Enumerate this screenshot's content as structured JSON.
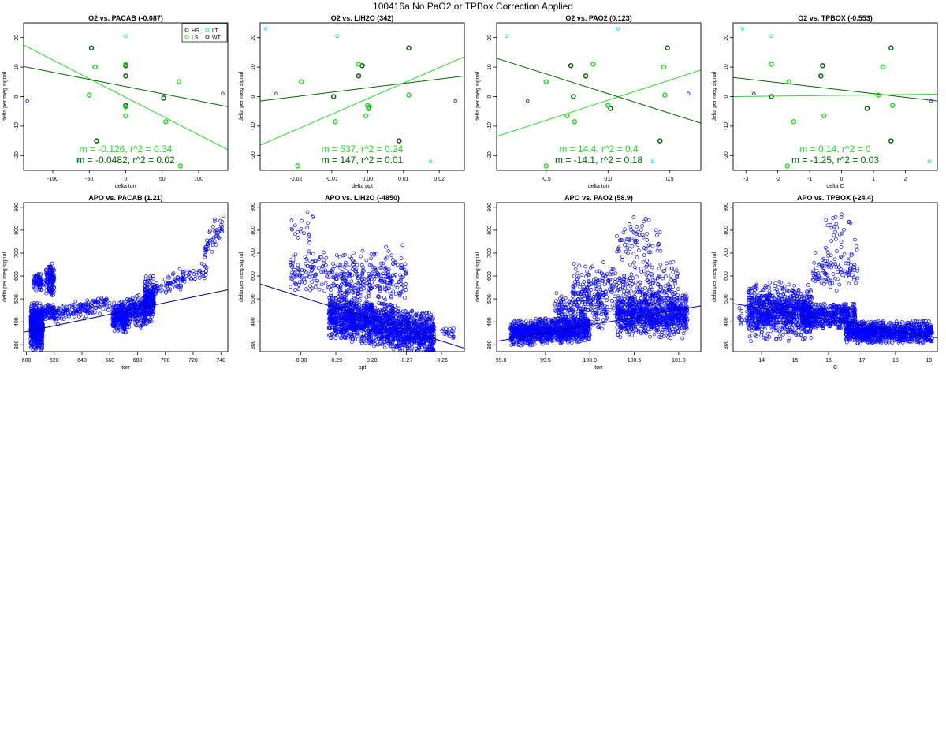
{
  "page_title": "100416a   No PaO2 or TPBox Correction Applied",
  "colors": {
    "HS": "#006400",
    "LS": "#22dd22",
    "LT": "#00e5ee",
    "WT": "#1a1aee",
    "apo_points": "#0000ff",
    "apo_fit": "#00008b"
  },
  "chart_data": [
    {
      "type": "scatter",
      "title": "O2 vs. PACAB (-0.087)",
      "xlabel": "delta torr",
      "ylabel": "delta per meg signal",
      "xlim": [
        -140,
        140
      ],
      "ylim": [
        -25,
        25
      ],
      "xticks": [
        -100,
        -50,
        0,
        50,
        100
      ],
      "yticks": [
        -20,
        -10,
        0,
        10,
        20
      ],
      "legend": {
        "position": "top-right",
        "entries": [
          "HS",
          "LS",
          "LT",
          "WT"
        ]
      },
      "series": [
        {
          "name": "HS",
          "points": [
            [
              -47,
              16.5
            ],
            [
              0,
              10.5
            ],
            [
              0,
              7
            ],
            [
              -40,
              -15
            ],
            [
              0,
              -3
            ],
            [
              52,
              -0.5
            ]
          ]
        },
        {
          "name": "LS",
          "points": [
            [
              -42,
              10
            ],
            [
              -50,
              0.5
            ],
            [
              0,
              11
            ],
            [
              0,
              -3.5
            ],
            [
              0,
              -6.5
            ],
            [
              55,
              -8.5
            ],
            [
              73,
              5
            ],
            [
              75,
              -23.5
            ]
          ]
        },
        {
          "name": "LT",
          "points": [
            [
              0,
              20.5
            ],
            [
              -65,
              -21.5
            ]
          ]
        },
        {
          "name": "WT",
          "points": [
            [
              -135,
              -1.5
            ],
            [
              133,
              1
            ]
          ]
        }
      ],
      "fits": [
        {
          "series": "LS",
          "text": "m = -0.126, r^2 = 0.34",
          "line": [
            [
              -140,
              17.5
            ],
            [
              140,
              -18
            ]
          ]
        },
        {
          "series": "HS",
          "text": "m = -0.0482, r^2 = 0.02",
          "line": [
            [
              -140,
              10.2
            ],
            [
              140,
              -3.4
            ]
          ]
        }
      ]
    },
    {
      "type": "scatter",
      "title": "O2 vs. LIH2O (342)",
      "xlabel": "delta ppt",
      "ylabel": "delta per meg signal",
      "xlim": [
        -0.03,
        0.027
      ],
      "ylim": [
        -25,
        25
      ],
      "xticks": [
        -0.02,
        -0.01,
        0.0,
        0.01,
        0.02
      ],
      "yticks": [
        -20,
        -10,
        0,
        10,
        20
      ],
      "series": [
        {
          "name": "HS",
          "points": [
            [
              -0.0095,
              0
            ],
            [
              -0.0015,
              10.5
            ],
            [
              -0.0025,
              7
            ],
            [
              0.0003,
              -4
            ],
            [
              0.0115,
              16.5
            ],
            [
              0.0088,
              -15
            ]
          ]
        },
        {
          "name": "LS",
          "points": [
            [
              -0.009,
              -8.5
            ],
            [
              -0.0025,
              11
            ],
            [
              -0.0005,
              -6.5
            ],
            [
              0,
              -3
            ],
            [
              0.0115,
              0.5
            ],
            [
              0.0005,
              -3.5
            ],
            [
              -0.0185,
              5
            ],
            [
              -0.0195,
              -23.5
            ]
          ]
        },
        {
          "name": "LT",
          "points": [
            [
              -0.0285,
              23
            ],
            [
              -0.0085,
              20.5
            ],
            [
              0.0175,
              -22
            ]
          ]
        },
        {
          "name": "WT",
          "points": [
            [
              -0.0255,
              1
            ],
            [
              0.0245,
              -1.5
            ]
          ]
        }
      ],
      "fits": [
        {
          "series": "LS",
          "text": "m = 537, r^2 = 0.24",
          "line": [
            [
              -0.03,
              -16.5
            ],
            [
              0.027,
              13.5
            ]
          ]
        },
        {
          "series": "HS",
          "text": "m = 147, r^2 = 0.01",
          "line": [
            [
              -0.03,
              -1.5
            ],
            [
              0.027,
              7
            ]
          ]
        }
      ]
    },
    {
      "type": "scatter",
      "title": "O2 vs. PAO2 (0.123)",
      "xlabel": "delta torr",
      "ylabel": "delta per meg signal",
      "xlim": [
        -0.9,
        0.75
      ],
      "ylim": [
        -25,
        25
      ],
      "xticks": [
        -0.5,
        0.0,
        0.5
      ],
      "yticks": [
        -20,
        -10,
        0,
        10,
        20
      ],
      "series": [
        {
          "name": "HS",
          "points": [
            [
              -0.3,
              10.5
            ],
            [
              -0.18,
              7
            ],
            [
              -0.28,
              0
            ],
            [
              0.02,
              -4
            ],
            [
              0.48,
              16.5
            ],
            [
              0.42,
              -15
            ]
          ]
        },
        {
          "name": "LS",
          "points": [
            [
              -0.12,
              11
            ],
            [
              0.45,
              10
            ],
            [
              0.46,
              0.5
            ],
            [
              -0.33,
              -6.5
            ],
            [
              -0.27,
              -8.5
            ],
            [
              0,
              -3
            ],
            [
              -0.5,
              5
            ],
            [
              -0.5,
              -23.5
            ]
          ]
        },
        {
          "name": "LT",
          "points": [
            [
              -0.82,
              20.5
            ],
            [
              0.08,
              23
            ],
            [
              0.36,
              -22
            ]
          ]
        },
        {
          "name": "WT",
          "points": [
            [
              -0.65,
              -1.5
            ],
            [
              0.65,
              1
            ]
          ]
        }
      ],
      "fits": [
        {
          "series": "LS",
          "text": "m = 14.4, r^2 = 0.4",
          "line": [
            [
              -0.9,
              -13.5
            ],
            [
              0.75,
              9
            ]
          ]
        },
        {
          "series": "HS",
          "text": "m = -14.1, r^2 = 0.18",
          "line": [
            [
              -0.9,
              13
            ],
            [
              0.75,
              -9
            ]
          ]
        }
      ]
    },
    {
      "type": "scatter",
      "title": "O2 vs. TPBOX (-0.553)",
      "xlabel": "delta C",
      "ylabel": "delta per meg signal",
      "xlim": [
        -3.4,
        3.0
      ],
      "ylim": [
        -25,
        25
      ],
      "xticks": [
        -3,
        -2,
        -1,
        0,
        1,
        2
      ],
      "yticks": [
        -20,
        -10,
        0,
        10,
        20
      ],
      "series": [
        {
          "name": "HS",
          "points": [
            [
              -2.2,
              0
            ],
            [
              -0.6,
              10.5
            ],
            [
              -0.65,
              7
            ],
            [
              0.8,
              -4
            ],
            [
              1.55,
              16.5
            ],
            [
              1.55,
              -15
            ]
          ]
        },
        {
          "name": "LS",
          "points": [
            [
              -2.2,
              11
            ],
            [
              -1.5,
              -8.5
            ],
            [
              -0.55,
              -6.5
            ],
            [
              1.15,
              0.5
            ],
            [
              1.3,
              10
            ],
            [
              1.6,
              -3
            ],
            [
              -1.65,
              5
            ],
            [
              -1.7,
              -23.5
            ]
          ]
        },
        {
          "name": "LT",
          "points": [
            [
              -3.1,
              23
            ],
            [
              -2.2,
              20.5
            ],
            [
              2.75,
              -22
            ]
          ]
        },
        {
          "name": "WT",
          "points": [
            [
              -2.75,
              1
            ],
            [
              2.8,
              -1.5
            ]
          ]
        }
      ],
      "fits": [
        {
          "series": "LS",
          "text": "m = 0.14, r^2 = 0",
          "line": [
            [
              -3.4,
              0
            ],
            [
              3.0,
              0.8
            ]
          ]
        },
        {
          "series": "HS",
          "text": "m = -1.25, r^2 = 0.03",
          "line": [
            [
              -3.4,
              6.5
            ],
            [
              3.0,
              -1.5
            ]
          ]
        }
      ]
    },
    {
      "type": "scatter",
      "title": "APO vs. PACAB (1.21)",
      "xlabel": "torr",
      "ylabel": "delta per meg signal",
      "xlim": [
        598,
        745
      ],
      "ylim": [
        270,
        920
      ],
      "xticks": [
        600,
        620,
        640,
        660,
        680,
        700,
        720,
        740
      ],
      "yticks": [
        300,
        400,
        500,
        600,
        700,
        800,
        900
      ],
      "fit_line": [
        [
          598,
          355
        ],
        [
          745,
          540
        ]
      ],
      "clusters": [
        {
          "x": [
            603,
            612
          ],
          "y": [
            290,
            470
          ],
          "n": 650,
          "spread": 45,
          "slope": 0
        },
        {
          "x": [
            605,
            612
          ],
          "y": [
            540,
            610
          ],
          "n": 70,
          "spread": 20,
          "slope": 0
        },
        {
          "x": [
            613,
            620
          ],
          "y": [
            410,
            470
          ],
          "n": 70,
          "spread": 20,
          "slope": 0
        },
        {
          "x": [
            614,
            620
          ],
          "y": [
            500,
            660
          ],
          "n": 130,
          "spread": 35,
          "slope": 0
        },
        {
          "x": [
            620,
            660
          ],
          "y": [
            410,
            500
          ],
          "n": 170,
          "spread": 18,
          "slope": 1.2
        },
        {
          "x": [
            662,
            672
          ],
          "y": [
            360,
            480
          ],
          "n": 260,
          "spread": 30,
          "slope": 0
        },
        {
          "x": [
            672,
            686
          ],
          "y": [
            380,
            520
          ],
          "n": 220,
          "spread": 30,
          "slope": 0
        },
        {
          "x": [
            685,
            692
          ],
          "y": [
            400,
            590
          ],
          "n": 240,
          "spread": 40,
          "slope": 0
        },
        {
          "x": [
            690,
            730
          ],
          "y": [
            520,
            640
          ],
          "n": 110,
          "spread": 20,
          "slope": 2.5
        },
        {
          "x": [
            728,
            742
          ],
          "y": [
            680,
            860
          ],
          "n": 50,
          "spread": 30,
          "slope": 8
        }
      ]
    },
    {
      "type": "scatter",
      "title": "APO vs. LIH2O (-4850)",
      "xlabel": "ppt",
      "ylabel": "delta per meg signal",
      "xlim": [
        -0.3115,
        -0.2535
      ],
      "ylim": [
        270,
        920
      ],
      "xticks": [
        -0.3,
        -0.29,
        -0.28,
        -0.27,
        -0.26
      ],
      "yticks": [
        300,
        400,
        500,
        600,
        700,
        800,
        900
      ],
      "fit_line": [
        [
          -0.3115,
          565
        ],
        [
          -0.2535,
          285
        ]
      ],
      "clusters": [
        {
          "x": [
            -0.292,
            -0.262
          ],
          "y": [
            300,
            470
          ],
          "n": 1700,
          "spread": 45,
          "slope": -3000
        },
        {
          "x": [
            -0.303,
            -0.29
          ],
          "y": [
            540,
            700
          ],
          "n": 120,
          "spread": 50,
          "slope": 0
        },
        {
          "x": [
            -0.303,
            -0.295
          ],
          "y": [
            730,
            900
          ],
          "n": 20,
          "spread": 40,
          "slope": 0
        },
        {
          "x": [
            -0.29,
            -0.27
          ],
          "y": [
            450,
            720
          ],
          "n": 300,
          "spread": 55,
          "slope": 0
        },
        {
          "x": [
            -0.26,
            -0.255
          ],
          "y": [
            330,
            370
          ],
          "n": 20,
          "spread": 15,
          "slope": 0
        }
      ]
    },
    {
      "type": "scatter",
      "title": "APO vs. PAO2 (58.9)",
      "xlabel": "torr",
      "ylabel": "delta per meg signal",
      "xlim": [
        98.95,
        101.25
      ],
      "ylim": [
        270,
        920
      ],
      "xticks": [
        99.0,
        99.5,
        100.0,
        100.5,
        101.0
      ],
      "yticks": [
        300,
        400,
        500,
        600,
        700,
        800,
        900
      ],
      "fit_line": [
        [
          98.95,
          315
        ],
        [
          101.25,
          470
        ]
      ],
      "clusters": [
        {
          "x": [
            99.1,
            100.0
          ],
          "y": [
            310,
            410
          ],
          "n": 1100,
          "spread": 25,
          "slope": 25
        },
        {
          "x": [
            99.6,
            100.2
          ],
          "y": [
            380,
            520
          ],
          "n": 200,
          "spread": 40,
          "slope": 0
        },
        {
          "x": [
            99.8,
            101.0
          ],
          "y": [
            450,
            650
          ],
          "n": 350,
          "spread": 55,
          "slope": 0
        },
        {
          "x": [
            100.3,
            101.1
          ],
          "y": [
            340,
            520
          ],
          "n": 900,
          "spread": 40,
          "slope": 0
        },
        {
          "x": [
            100.3,
            100.8
          ],
          "y": [
            600,
            900
          ],
          "n": 70,
          "spread": 60,
          "slope": 0
        }
      ]
    },
    {
      "type": "scatter",
      "title": "APO vs. TPBOX (-24.4)",
      "xlabel": "C",
      "ylabel": "delta per meg signal",
      "xlim": [
        13.15,
        19.25
      ],
      "ylim": [
        270,
        920
      ],
      "xticks": [
        14,
        15,
        16,
        17,
        18,
        19
      ],
      "yticks": [
        300,
        400,
        500,
        600,
        700,
        800,
        900
      ],
      "fit_line": [
        [
          13.15,
          480
        ],
        [
          19.25,
          330
        ]
      ],
      "clusters": [
        {
          "x": [
            13.6,
            15.5
          ],
          "y": [
            330,
            560
          ],
          "n": 900,
          "spread": 50,
          "slope": 0
        },
        {
          "x": [
            15.2,
            16.8
          ],
          "y": [
            380,
            470
          ],
          "n": 500,
          "spread": 30,
          "slope": 0
        },
        {
          "x": [
            16.5,
            19.1
          ],
          "y": [
            310,
            400
          ],
          "n": 1000,
          "spread": 22,
          "slope": 0
        },
        {
          "x": [
            15.5,
            16.9
          ],
          "y": [
            540,
            720
          ],
          "n": 110,
          "spread": 40,
          "slope": 0
        },
        {
          "x": [
            15.9,
            16.8
          ],
          "y": [
            720,
            900
          ],
          "n": 25,
          "spread": 40,
          "slope": 0
        },
        {
          "x": [
            13.3,
            13.8
          ],
          "y": [
            380,
            470
          ],
          "n": 30,
          "spread": 20,
          "slope": 0
        }
      ]
    }
  ]
}
